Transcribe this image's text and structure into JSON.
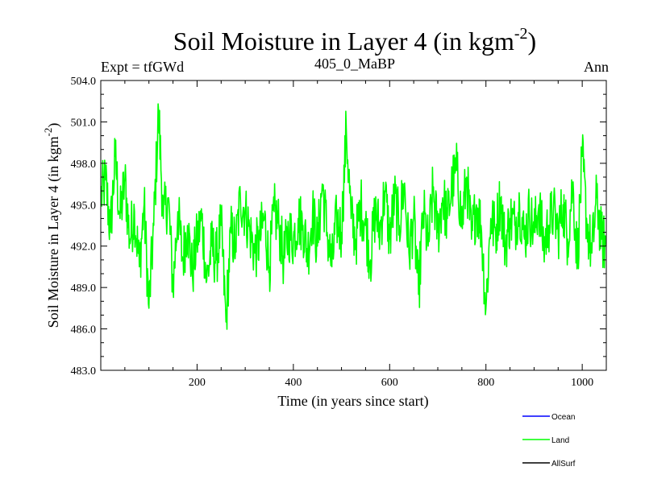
{
  "chart_data": {
    "type": "line",
    "title_main": "Soil Moisture in Layer 4 (in kgm",
    "title_sup": "-2",
    "title_close": ")",
    "left_label": "Expt = tfGWd",
    "center_label": "405_0_MaBP",
    "right_label": "Ann",
    "xlabel": "Time (in years since start)",
    "ylabel_main": "Soil Moisture in Layer 4 (in kgm",
    "ylabel_sup": "-2",
    "ylabel_close": ")",
    "xlim": [
      0,
      1050
    ],
    "ylim": [
      483.0,
      504.0
    ],
    "xticks": [
      200,
      400,
      600,
      800,
      1000
    ],
    "xtick_labels": [
      "200",
      "400",
      "600",
      "800",
      "1000"
    ],
    "yticks": [
      483.0,
      486.0,
      489.0,
      492.0,
      495.0,
      498.0,
      501.0,
      504.0
    ],
    "ytick_labels": [
      "483.0",
      "486.0",
      "489.0",
      "492.0",
      "495.0",
      "498.0",
      "501.0",
      "504.0"
    ],
    "legend": [
      {
        "name": "Ocean",
        "color": "#0000ff"
      },
      {
        "name": "Land",
        "color": "#00ff00"
      },
      {
        "name": "AllSurf",
        "color": "#000000"
      }
    ],
    "series": [
      {
        "name": "Land",
        "color": "#00ff00",
        "x": [
          0,
          10,
          20,
          30,
          40,
          50,
          60,
          70,
          80,
          90,
          100,
          110,
          120,
          130,
          140,
          150,
          160,
          170,
          180,
          190,
          200,
          210,
          220,
          230,
          240,
          250,
          260,
          270,
          280,
          290,
          300,
          310,
          320,
          330,
          340,
          350,
          360,
          370,
          380,
          390,
          400,
          410,
          420,
          430,
          440,
          450,
          460,
          470,
          480,
          490,
          500,
          510,
          520,
          530,
          540,
          550,
          560,
          570,
          580,
          590,
          600,
          610,
          620,
          630,
          640,
          650,
          660,
          670,
          680,
          690,
          700,
          710,
          720,
          730,
          740,
          750,
          760,
          770,
          780,
          790,
          800,
          810,
          820,
          830,
          840,
          850,
          860,
          870,
          880,
          890,
          900,
          910,
          920,
          930,
          940,
          950,
          960,
          970,
          980,
          990,
          1000,
          1010,
          1020,
          1030,
          1040,
          1050
        ],
        "values": [
          495.5,
          496.8,
          493.0,
          498.5,
          494.0,
          496.8,
          492.5,
          494.5,
          490.5,
          495.0,
          487.5,
          493.5,
          501.8,
          494.0,
          495.5,
          489.0,
          494.5,
          491.0,
          493.5,
          490.0,
          492.5,
          494.0,
          489.5,
          492.0,
          491.0,
          493.5,
          486.5,
          493.0,
          492.0,
          495.5,
          494.5,
          493.0,
          491.5,
          492.5,
          494.0,
          490.5,
          494.5,
          493.5,
          491.0,
          493.0,
          492.5,
          494.0,
          493.5,
          491.5,
          494.5,
          492.0,
          496.5,
          493.0,
          490.5,
          494.0,
          493.0,
          500.5,
          494.0,
          492.5,
          495.0,
          493.5,
          491.0,
          494.5,
          493.0,
          496.0,
          492.5,
          495.5,
          493.5,
          496.5,
          491.5,
          494.0,
          488.5,
          494.5,
          492.0,
          496.0,
          493.0,
          495.5,
          494.0,
          496.5,
          497.5,
          493.5,
          497.0,
          492.5,
          495.0,
          493.5,
          487.5,
          494.0,
          493.0,
          495.5,
          492.0,
          494.0,
          493.5,
          495.0,
          492.5,
          494.5,
          493.0,
          495.0,
          492.0,
          493.5,
          494.5,
          493.0,
          495.0,
          492.5,
          496.5,
          491.0,
          498.5,
          493.5,
          491.5,
          495.5,
          492.5,
          492.0
        ]
      }
    ]
  }
}
